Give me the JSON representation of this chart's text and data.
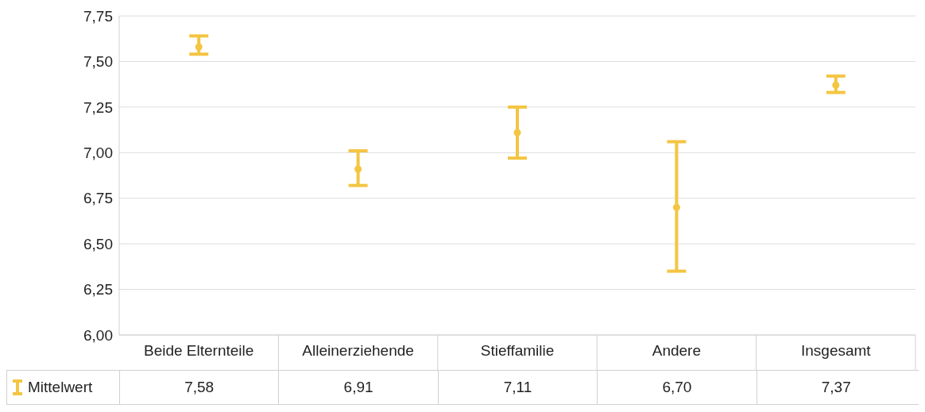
{
  "chart_data": {
    "type": "scatter",
    "categories": [
      "Beide Elternteile",
      "Alleinerziehende",
      "Stieffamilie",
      "Andere",
      "Insgesamt"
    ],
    "series": [
      {
        "name": "Mittelwert",
        "color": "#f4c542",
        "values": [
          7.58,
          6.91,
          7.11,
          6.7,
          7.37
        ],
        "errors": [
          [
            7.54,
            7.64
          ],
          [
            6.82,
            7.01
          ],
          [
            6.97,
            7.25
          ],
          [
            6.35,
            7.06
          ],
          [
            7.33,
            7.42
          ]
        ],
        "value_labels": [
          "7,58",
          "6,91",
          "7,11",
          "6,70",
          "7,37"
        ]
      }
    ],
    "ylim": [
      6,
      7.75
    ],
    "yticks": [
      {
        "value": 6,
        "label": "6,00"
      },
      {
        "value": 6.25,
        "label": "6,25"
      },
      {
        "value": 6.5,
        "label": "6,50"
      },
      {
        "value": 6.75,
        "label": "6,75"
      },
      {
        "value": 7,
        "label": "7,00"
      },
      {
        "value": 7.25,
        "label": "7,25"
      },
      {
        "value": 7.5,
        "label": "7,50"
      },
      {
        "value": 7.75,
        "label": "7,75"
      }
    ],
    "grid": "y",
    "marker": "circle",
    "legend": "bottom left"
  }
}
